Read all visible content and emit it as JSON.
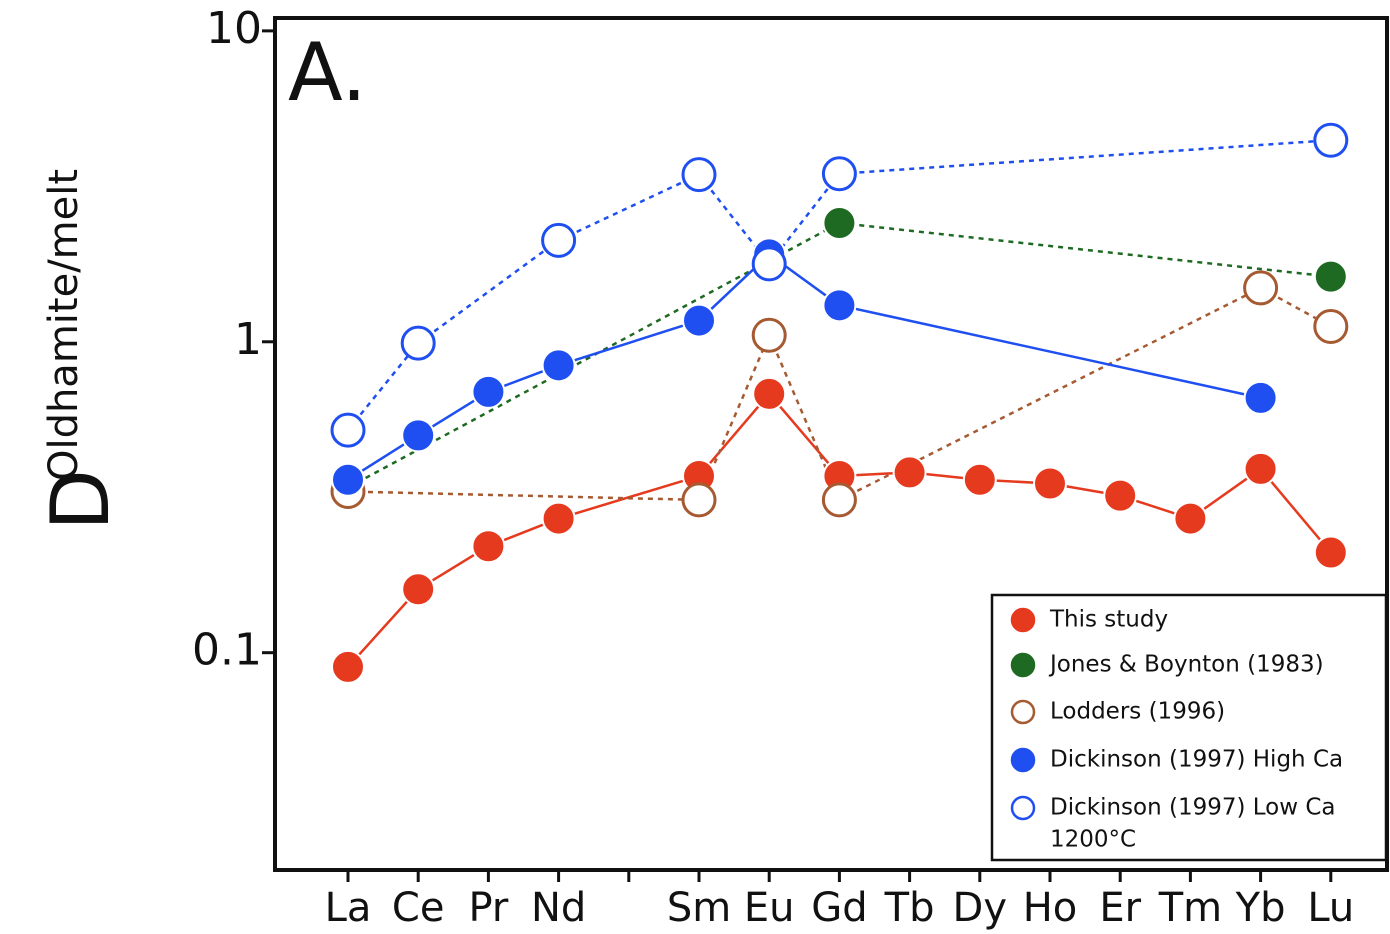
{
  "chart_data": {
    "type": "line",
    "title": "A.",
    "ylabel": "D",
    "ylabel_sub": "Oldhamite/melt",
    "categories": [
      "La",
      "Ce",
      "Pr",
      "Nd",
      null,
      "Sm",
      "Eu",
      "Gd",
      "Tb",
      "Dy",
      "Ho",
      "Er",
      "Tm",
      "Yb",
      "Lu"
    ],
    "ylim": [
      0.02,
      11
    ],
    "yticks": [
      0.1,
      1,
      10
    ],
    "log_y": true,
    "legend": "lower right",
    "series": [
      {
        "name": "This study",
        "color": "#e63a1f",
        "marker": "filled",
        "dashed": false,
        "values": [
          0.09,
          0.16,
          0.22,
          0.27,
          null,
          0.37,
          0.68,
          0.37,
          0.38,
          0.36,
          0.35,
          0.32,
          0.27,
          0.39,
          0.21
        ]
      },
      {
        "name": "Jones & Boynton (1983)",
        "color": "#1f6a22",
        "marker": "filled",
        "dashed": true,
        "values": [
          0.34,
          null,
          null,
          null,
          null,
          null,
          null,
          2.41,
          null,
          null,
          null,
          null,
          null,
          null,
          1.62
        ]
      },
      {
        "name": "Lodders (1996)",
        "color": "#a65a32",
        "marker": "open",
        "dashed": true,
        "values": [
          0.33,
          null,
          null,
          null,
          null,
          0.31,
          1.05,
          0.31,
          null,
          null,
          null,
          null,
          null,
          1.49,
          1.12
        ]
      },
      {
        "name": "Dickinson (1997) High Ca",
        "color": "#1f4ff0",
        "marker": "filled",
        "dashed": false,
        "values": [
          0.36,
          0.5,
          0.69,
          0.84,
          null,
          1.17,
          1.91,
          1.31,
          null,
          null,
          null,
          null,
          null,
          0.66,
          null
        ]
      },
      {
        "name": "Dickinson (1997) Low Ca",
        "name_note": "1200°C",
        "color": "#1f4ff0",
        "marker": "open",
        "dashed": true,
        "values": [
          0.52,
          0.99,
          null,
          2.12,
          null,
          3.45,
          1.78,
          3.47,
          null,
          null,
          null,
          null,
          null,
          null,
          4.45
        ]
      }
    ]
  }
}
